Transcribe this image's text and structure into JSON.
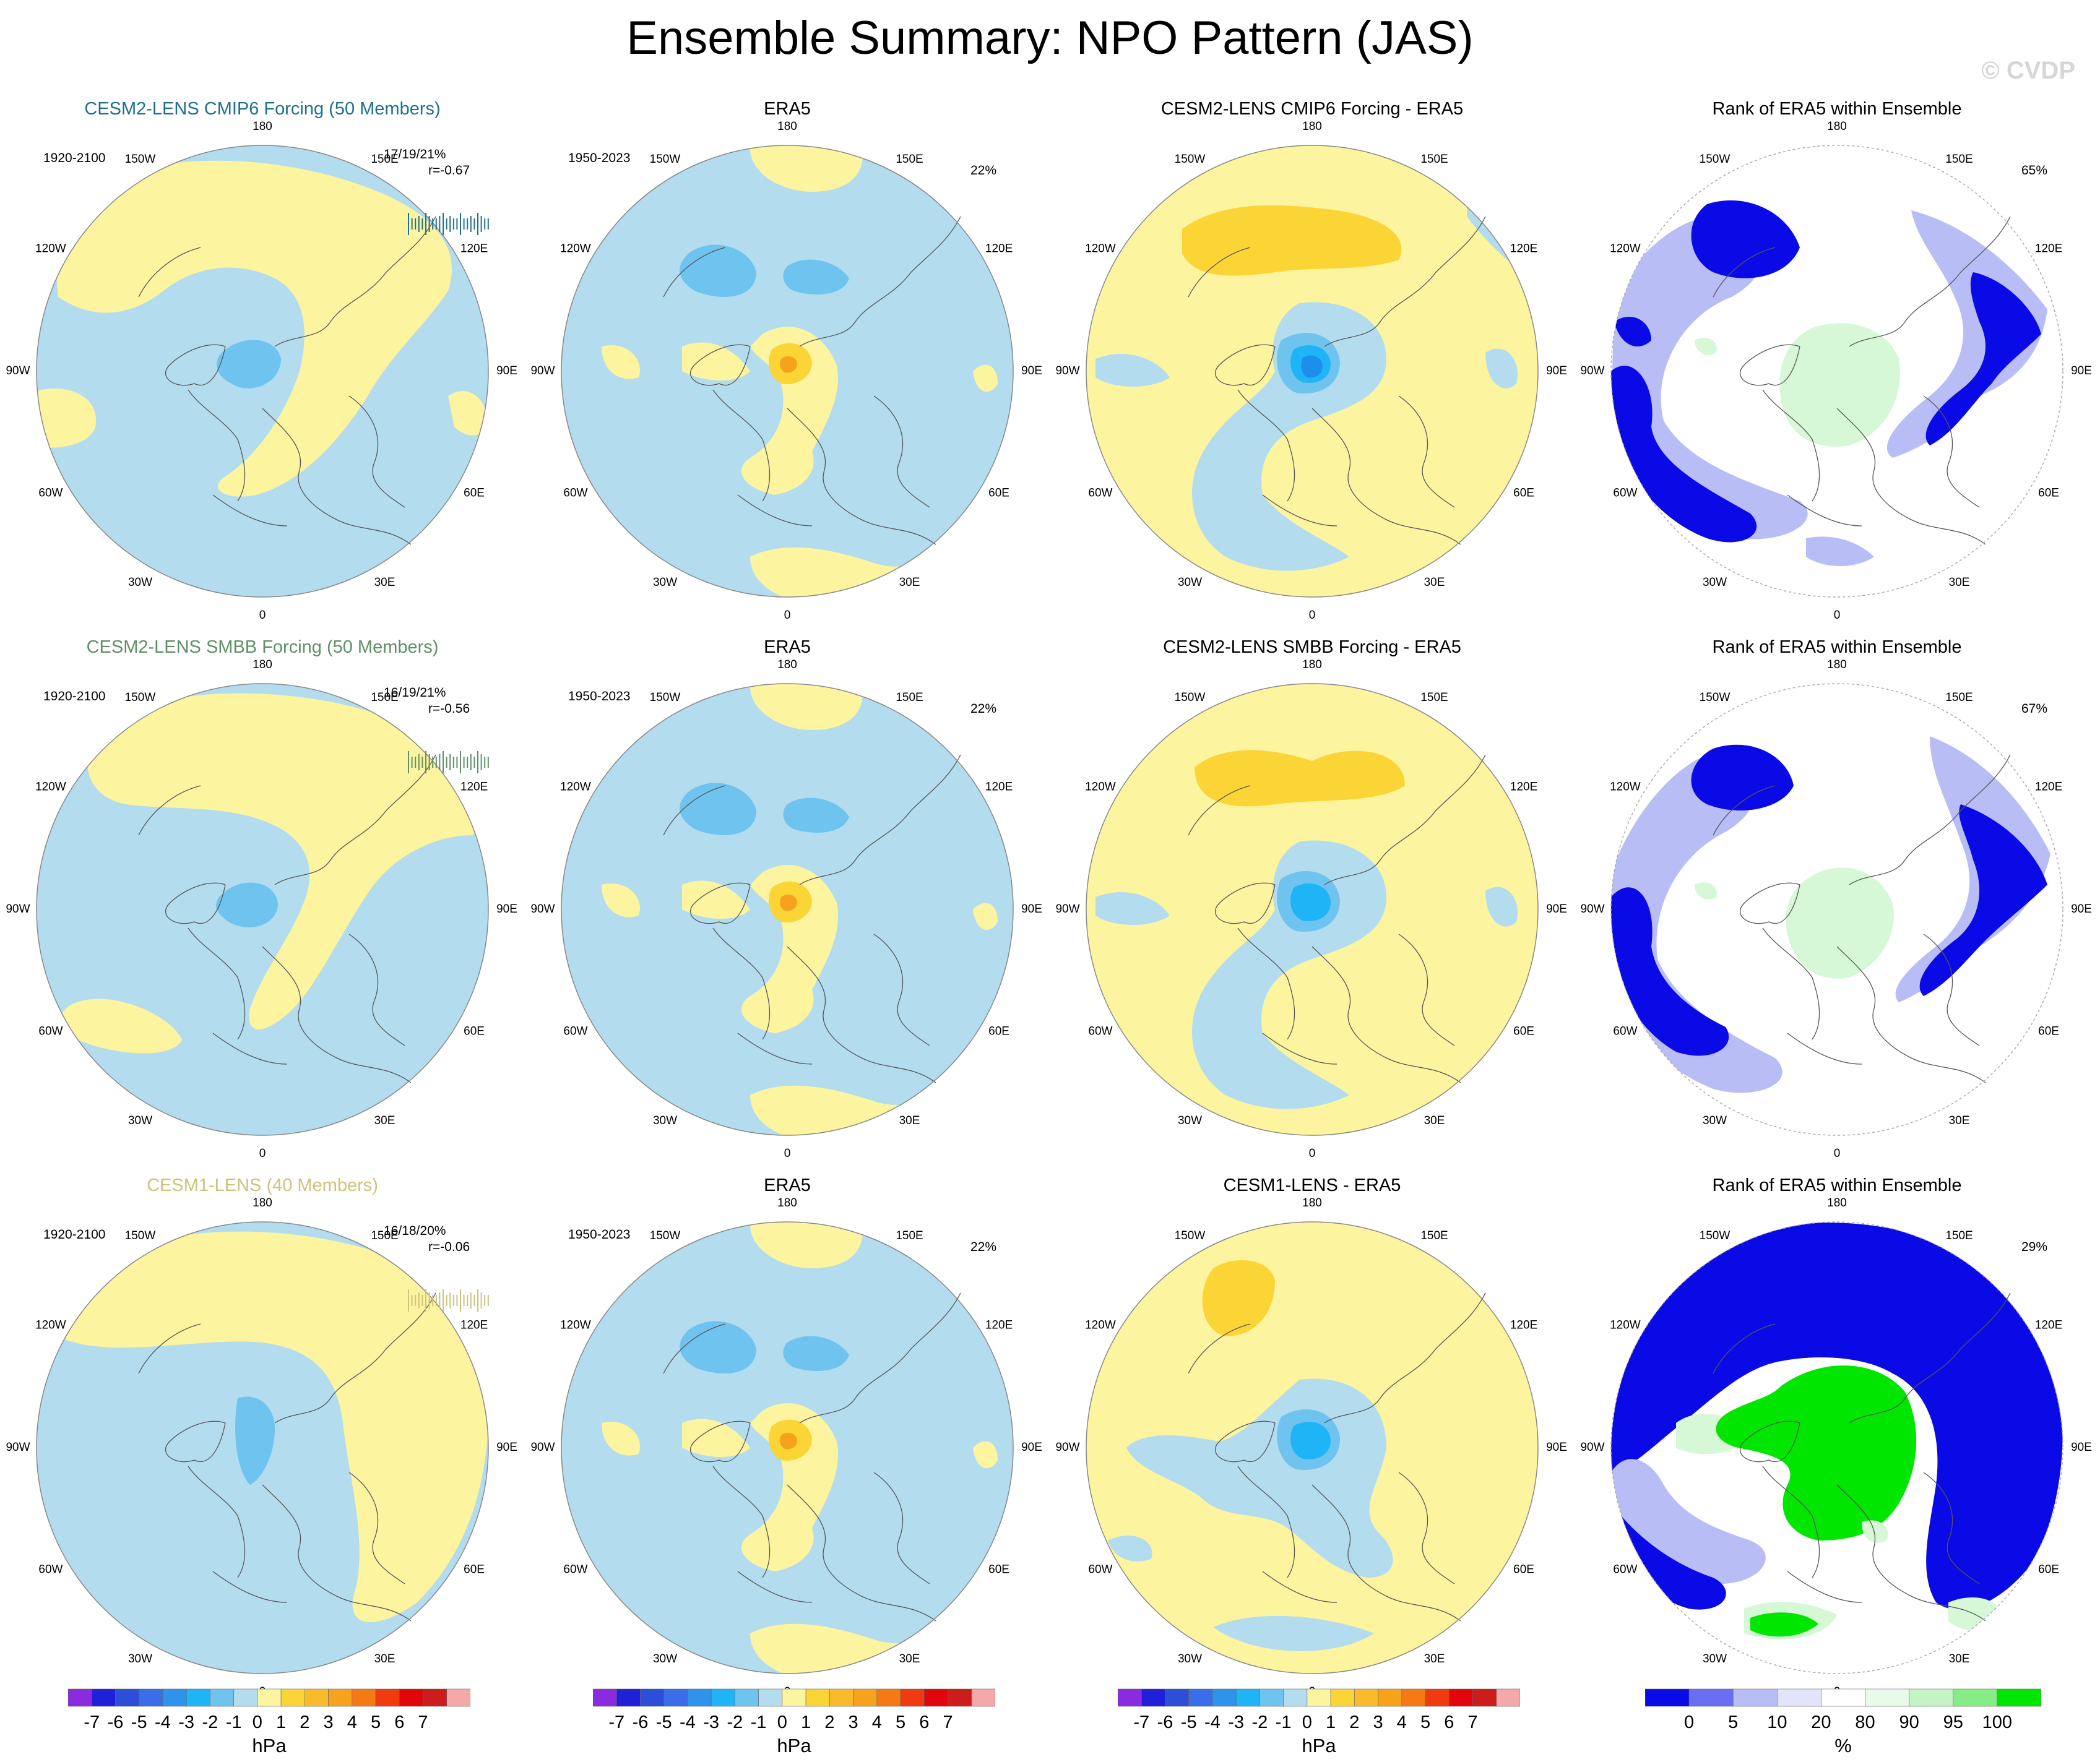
{
  "figure_title": "Ensemble Summary: NPO Pattern (JAS)",
  "watermark": "© CVDP",
  "colors": {
    "model1_title": "#1f6f8f",
    "model2_title": "#5f8f66",
    "model3_title": "#cfc27a",
    "neg1": "#b3dcef",
    "neg2": "#6ec4ef",
    "neg3": "#1fb4f5",
    "neg4": "#1c8fea",
    "pos1": "#fdf4a0",
    "pos2": "#fbd536",
    "pos3": "#f7a21c",
    "rank_blue": "#0a0ae6",
    "rank_lightblue": "#b8bdf5",
    "rank_green": "#00e600",
    "rank_lightgreen": "#d6f8d6"
  },
  "rows": [
    {
      "model": {
        "title": "CESM2-LENS CMIP6 Forcing (50 Members)",
        "period": "1920-2100",
        "stats": "17/19/21%",
        "corr": "r=-0.67"
      },
      "era5": {
        "title": "ERA5",
        "period": "1950-2023",
        "pct": "22%"
      },
      "diff": {
        "title": "CESM2-LENS CMIP6 Forcing - ERA5"
      },
      "rank": {
        "title": "Rank of ERA5 within Ensemble",
        "pct": "65%"
      }
    },
    {
      "model": {
        "title": "CESM2-LENS SMBB Forcing (50 Members)",
        "period": "1920-2100",
        "stats": "16/19/21%",
        "corr": "r=-0.56"
      },
      "era5": {
        "title": "ERA5",
        "period": "1950-2023",
        "pct": "22%"
      },
      "diff": {
        "title": "CESM2-LENS SMBB Forcing - ERA5"
      },
      "rank": {
        "title": "Rank of ERA5 within Ensemble",
        "pct": "67%"
      }
    },
    {
      "model": {
        "title": "CESM1-LENS (40 Members)",
        "period": "1920-2100",
        "stats": "16/18/20%",
        "corr": "r=-0.06"
      },
      "era5": {
        "title": "ERA5",
        "period": "1950-2023",
        "pct": "22%"
      },
      "diff": {
        "title": "CESM1-LENS - ERA5"
      },
      "rank": {
        "title": "Rank of ERA5 within Ensemble",
        "pct": "29%"
      }
    }
  ],
  "lon_labels": [
    "180",
    "150E",
    "120E",
    "90E",
    "60E",
    "30E",
    "0",
    "30W",
    "60W",
    "90W",
    "120W",
    "150W"
  ],
  "chart_data": {
    "type": "heatmap",
    "projection": "north polar stereographic",
    "units": "hPa",
    "hpa_colorbar": {
      "ticks": [
        "-7",
        "-6",
        "-5",
        "-4",
        "-3",
        "-2",
        "-1",
        "0",
        "1",
        "2",
        "3",
        "4",
        "5",
        "6",
        "7"
      ],
      "colors": [
        "#8a2be2",
        "#2020d8",
        "#2c4ed8",
        "#3a6ee8",
        "#2e93ea",
        "#1fb4f5",
        "#6ec4ef",
        "#b3dcef",
        "#fdf4a0",
        "#fbd536",
        "#f9bb2c",
        "#f7a21c",
        "#f57a16",
        "#f03a10",
        "#e0060c",
        "#cc1c1c",
        "#f4a8a8"
      ],
      "units": "hPa"
    },
    "rank_colorbar": {
      "ticks": [
        "0",
        "5",
        "10",
        "20",
        "80",
        "90",
        "95",
        "100"
      ],
      "colors": [
        "#0a0ae6",
        "#6a6ef0",
        "#b8bdf5",
        "#e3e4fb",
        "#ffffff",
        "#e8fbe8",
        "#c4f4c4",
        "#86ec86",
        "#00e600"
      ],
      "units": "%"
    }
  }
}
